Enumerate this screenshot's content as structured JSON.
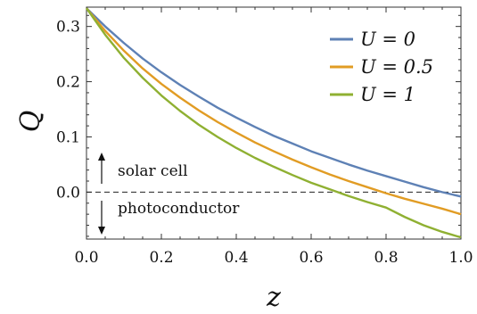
{
  "chart_data": {
    "type": "line",
    "title": "",
    "xlabel": "z",
    "ylabel": "Q",
    "xlim": [
      0.0,
      1.0
    ],
    "ylim": [
      -0.085,
      0.335
    ],
    "xticks": [
      0.0,
      0.2,
      0.4,
      0.6,
      0.8,
      1.0
    ],
    "xtick_labels": [
      "0.0",
      "0.2",
      "0.4",
      "0.6",
      "0.8",
      "1.0"
    ],
    "yticks": [
      0.0,
      0.1,
      0.2,
      0.3
    ],
    "ytick_labels": [
      "0.0",
      "0.1",
      "0.2",
      "0.3"
    ],
    "grid": false,
    "legend_position": "top-right",
    "x": [
      0.0,
      0.05,
      0.1,
      0.15,
      0.2,
      0.25,
      0.3,
      0.35,
      0.4,
      0.45,
      0.5,
      0.55,
      0.6,
      0.65,
      0.7,
      0.75,
      0.8,
      0.85,
      0.9,
      0.95,
      1.0
    ],
    "series": [
      {
        "name": "U = 0",
        "color": "#5e81b5",
        "values": [
          0.333,
          0.3,
          0.27,
          0.242,
          0.217,
          0.194,
          0.173,
          0.153,
          0.135,
          0.118,
          0.102,
          0.088,
          0.074,
          0.062,
          0.05,
          0.039,
          0.029,
          0.019,
          0.009,
          0.0,
          -0.008
        ]
      },
      {
        "name": "U = 0.5",
        "color": "#e19c24",
        "values": [
          0.333,
          0.292,
          0.256,
          0.224,
          0.196,
          0.171,
          0.148,
          0.127,
          0.108,
          0.09,
          0.074,
          0.059,
          0.045,
          0.032,
          0.02,
          0.009,
          -0.002,
          -0.012,
          -0.021,
          -0.03,
          -0.04
        ]
      },
      {
        "name": "U = 1",
        "color": "#8fb032",
        "values": [
          0.333,
          0.285,
          0.243,
          0.207,
          0.175,
          0.147,
          0.122,
          0.1,
          0.08,
          0.062,
          0.046,
          0.031,
          0.017,
          0.005,
          -0.007,
          -0.018,
          -0.028,
          -0.045,
          -0.06,
          -0.072,
          -0.082
        ]
      }
    ],
    "reference_line": {
      "y": 0.0,
      "style": "dashed"
    },
    "annotations": {
      "up_label": "solar cell",
      "down_label": "photoconductor"
    }
  }
}
